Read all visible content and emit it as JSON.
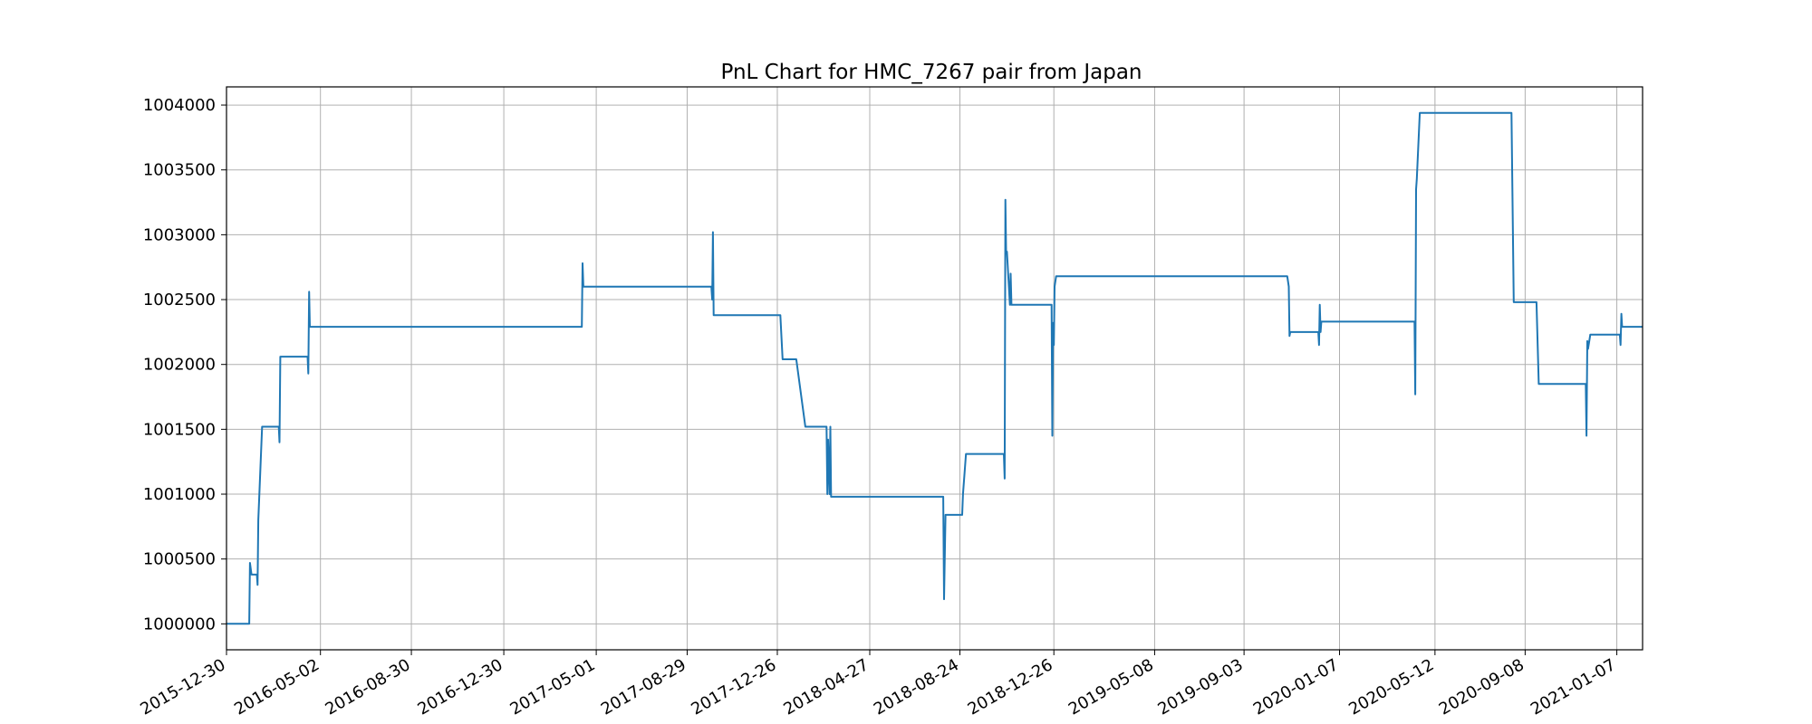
{
  "chart_data": {
    "type": "line",
    "title": "PnL Chart for HMC_7267 pair from Japan",
    "xlabel": "",
    "ylabel": "",
    "grid": true,
    "legend": "none",
    "color": "#1f77b4",
    "xlim": [
      "2015-12-30",
      "2021-02-10"
    ],
    "ylim": [
      999800,
      1004140
    ],
    "x_ticks": [
      "2015-12-30",
      "2016-05-02",
      "2016-08-30",
      "2016-12-30",
      "2017-05-01",
      "2017-08-29",
      "2017-12-26",
      "2018-04-27",
      "2018-08-24",
      "2018-12-26",
      "2019-05-08",
      "2019-09-03",
      "2020-01-07",
      "2020-05-12",
      "2020-09-08",
      "2021-01-07"
    ],
    "y_ticks": [
      1000000,
      1000500,
      1001000,
      1001500,
      1002000,
      1002500,
      1003000,
      1003500,
      1004000
    ],
    "series": [
      {
        "x": [
          "2015-12-30",
          "2016-01-29",
          "2016-01-30",
          "2016-02-01",
          "2016-02-08",
          "2016-02-09",
          "2016-02-10",
          "2016-02-15",
          "2016-02-16",
          "2016-03-08",
          "2016-03-09",
          "2016-03-10",
          "2016-03-11",
          "2016-04-15",
          "2016-04-16",
          "2016-04-17",
          "2016-04-18",
          "2016-04-19",
          "2017-04-12",
          "2017-04-13",
          "2017-04-14",
          "2017-04-20",
          "2017-09-30",
          "2017-10-01",
          "2017-10-02",
          "2017-10-03",
          "2017-10-04",
          "2017-12-30",
          "2018-01-02",
          "2018-01-20",
          "2018-02-01",
          "2018-03-01",
          "2018-03-02",
          "2018-03-03",
          "2018-03-05",
          "2018-03-06",
          "2018-03-07",
          "2018-03-08",
          "2018-03-09",
          "2018-08-02",
          "2018-08-03",
          "2018-08-05",
          "2018-08-27",
          "2018-08-28",
          "2018-09-01",
          "2018-10-21",
          "2018-10-22",
          "2018-10-23",
          "2018-10-24",
          "2018-10-25",
          "2018-10-29",
          "2018-10-30",
          "2018-10-31",
          "2018-11-02",
          "2018-12-23",
          "2018-12-24",
          "2018-12-25",
          "2018-12-26",
          "2018-12-27",
          "2018-12-29",
          "2019-01-02",
          "2019-10-30",
          "2019-11-01",
          "2019-11-02",
          "2019-11-03",
          "2019-12-10",
          "2019-12-11",
          "2019-12-12",
          "2019-12-13",
          "2019-12-14",
          "2020-04-15",
          "2020-04-16",
          "2020-04-17",
          "2020-04-18",
          "2020-04-22",
          "2020-04-23",
          "2020-08-21",
          "2020-08-24",
          "2020-09-23",
          "2020-09-26",
          "2020-11-27",
          "2020-11-28",
          "2020-11-29",
          "2020-11-30",
          "2020-12-03",
          "2020-12-05",
          "2021-01-11",
          "2021-01-12",
          "2021-01-13",
          "2021-01-14",
          "2021-02-10"
        ],
        "y": [
          1000000,
          1000000,
          1000470,
          1000380,
          1000380,
          1000300,
          1000800,
          1001520,
          1001520,
          1001520,
          1001400,
          1002060,
          1002060,
          1002060,
          1001930,
          1002560,
          1002290,
          1002290,
          1002290,
          1002780,
          1002600,
          1002600,
          1002600,
          1002500,
          1003020,
          1002380,
          1002380,
          1002380,
          1002040,
          1002040,
          1001520,
          1001520,
          1001000,
          1001420,
          1001000,
          1001520,
          1000980,
          1000980,
          1000980,
          1000980,
          1000190,
          1000840,
          1000840,
          1001000,
          1001310,
          1001310,
          1001120,
          1003270,
          1002870,
          1002870,
          1002460,
          1002700,
          1002460,
          1002460,
          1002460,
          1001450,
          1002320,
          1002150,
          1002600,
          1002680,
          1002680,
          1002680,
          1002600,
          1002220,
          1002250,
          1002250,
          1002150,
          1002460,
          1002250,
          1002330,
          1002330,
          1001770,
          1003350,
          1003430,
          1003940,
          1003940,
          1003940,
          1002480,
          1002480,
          1001850,
          1001850,
          1001450,
          1002180,
          1002120,
          1002230,
          1002230,
          1002230,
          1002150,
          1002390,
          1002290,
          1002290
        ]
      }
    ]
  }
}
